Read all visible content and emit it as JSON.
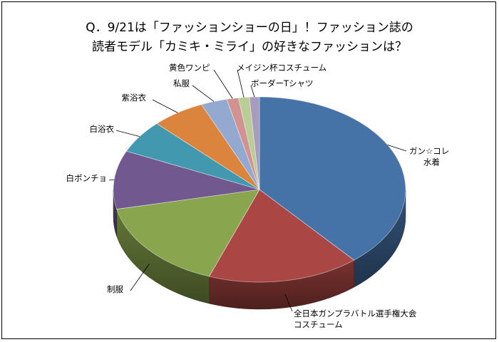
{
  "chart_data": {
    "type": "pie",
    "title": "Q．9/21は「ファッションショーの日」！ファッション誌の\n読者モデル「カミキ・ミライ」の好きなファッションは？",
    "slices": [
      {
        "label": "ガン☆コレ\n水着",
        "value": 38.8,
        "color": "#4572a7"
      },
      {
        "label": "全日本ガンプラバトル選手権大会\nコスチューム",
        "value": 16.8,
        "color": "#aa4643"
      },
      {
        "label": "制服",
        "value": 16.0,
        "color": "#89a54e"
      },
      {
        "label": "白ポンチョ",
        "value": 10.2,
        "color": "#71588f"
      },
      {
        "label": "白浴衣",
        "value": 5.8,
        "color": "#4198af"
      },
      {
        "label": "紫浴衣",
        "value": 5.9,
        "color": "#db843d"
      },
      {
        "label": "私服",
        "value": 2.9,
        "color": "#93a9cf"
      },
      {
        "label": "黄色ワンピ",
        "value": 1.3,
        "color": "#d19392"
      },
      {
        "label": "メイジン杯コスチューム",
        "value": 1.2,
        "color": "#b9cd96"
      },
      {
        "label": "ボーダーTシャツ",
        "value": 1.1,
        "color": "#a99bbd"
      }
    ],
    "legend": "none",
    "start": "top",
    "direction": "clockwise",
    "style": "3d-tilted"
  }
}
